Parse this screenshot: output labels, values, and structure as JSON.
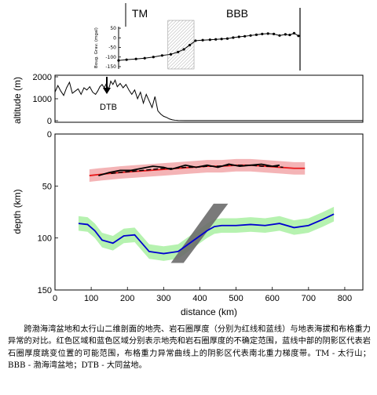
{
  "chart_data": [
    {
      "type": "line",
      "title": "",
      "ylabel": "Boug. Grav. (mgal)",
      "xlim": [
        60,
        385
      ],
      "ylim": [
        -150,
        50
      ],
      "yticks": [
        50,
        0,
        -50,
        -100,
        -150
      ],
      "region_labels": [
        "TM",
        "BBB"
      ],
      "shaded_x": [
        192,
        228
      ],
      "series": [
        {
          "x": [
            124,
            135,
            148,
            160,
            172,
            184,
            196,
            206,
            214,
            222,
            230,
            240,
            250,
            258,
            266,
            274,
            282,
            290,
            298,
            306,
            314,
            322,
            330,
            338,
            346,
            354,
            360,
            366,
            372
          ],
          "y": [
            -118,
            -114,
            -110,
            -106,
            -100,
            -92,
            -86,
            -74,
            -60,
            -38,
            -15,
            -12,
            -10,
            -8,
            -6,
            -4,
            1,
            5,
            8,
            12,
            16,
            20,
            22,
            20,
            12,
            18,
            15,
            24,
            10
          ]
        }
      ]
    },
    {
      "type": "line",
      "ylabel": "altitude (m)",
      "xlim": [
        0,
        850
      ],
      "ylim": [
        0,
        2000
      ],
      "yticks": [
        2000,
        1000,
        0
      ],
      "annotation": "DTB",
      "annotation_x": 130,
      "series": [
        {
          "x": [
            0,
            8,
            16,
            24,
            32,
            40,
            48,
            56,
            64,
            72,
            80,
            88,
            96,
            104,
            112,
            118,
            124,
            130,
            136,
            142,
            148,
            154,
            160,
            166,
            172,
            180,
            188,
            196,
            204,
            212,
            220,
            228,
            236,
            244,
            252,
            260,
            268,
            276,
            284,
            292,
            300,
            308,
            316,
            324,
            332,
            340,
            360,
            400,
            450,
            500,
            600,
            700,
            800,
            850
          ],
          "y": [
            1300,
            1600,
            1350,
            1150,
            1500,
            1750,
            1250,
            1350,
            1450,
            1200,
            1500,
            1400,
            1550,
            1300,
            1200,
            1350,
            1550,
            1650,
            1500,
            1700,
            1400,
            1800,
            1650,
            1850,
            1550,
            1700,
            1500,
            1650,
            1400,
            1200,
            1400,
            1000,
            1300,
            800,
            1200,
            900,
            600,
            1100,
            450,
            300,
            200,
            150,
            80,
            40,
            20,
            10,
            5,
            5,
            5,
            3,
            3,
            3,
            3,
            3
          ]
        }
      ]
    },
    {
      "type": "line",
      "xlabel": "distance (km)",
      "ylabel": "depth (km)",
      "xlim": [
        0,
        850
      ],
      "ylim": [
        150,
        0
      ],
      "xticks": [
        0,
        100,
        200,
        300,
        400,
        500,
        600,
        700,
        800
      ],
      "yticks": [
        0,
        50,
        100,
        150
      ],
      "series": [
        {
          "x": [
            95,
            120,
            150,
            180,
            220,
            260,
            300,
            340,
            380,
            420,
            460,
            500,
            540,
            580,
            620,
            660,
            690
          ],
          "y": [
            40,
            39,
            38,
            37,
            36,
            35,
            34,
            33,
            32,
            31,
            31,
            30,
            30,
            31,
            32,
            33,
            33
          ],
          "color": "#e8191b",
          "band": 6
        },
        {
          "x": [
            155,
            180,
            210,
            240,
            270,
            300,
            330,
            360,
            390,
            420,
            450,
            480,
            510,
            540,
            570,
            600,
            630
          ],
          "y": [
            38,
            37,
            36,
            35,
            34,
            33,
            33,
            32,
            32,
            31,
            31,
            30,
            30,
            30,
            31,
            31,
            32
          ],
          "color": "#000000",
          "dashed": true
        },
        {
          "x": [
            120,
            150,
            180,
            210,
            240,
            270,
            300,
            320,
            340,
            360,
            390,
            420,
            450,
            480,
            510,
            540,
            570,
            600,
            620
          ],
          "y": [
            40,
            37,
            35,
            35,
            33,
            31,
            32,
            34,
            32,
            30,
            32,
            30,
            32,
            29,
            31,
            30,
            29,
            31,
            30
          ],
          "color": "#000000"
        },
        {
          "x": [
            65,
            90,
            110,
            130,
            160,
            190,
            220,
            240,
            260,
            280,
            300,
            320,
            340,
            360,
            380,
            400,
            420,
            440,
            460,
            500,
            540,
            580,
            620,
            660,
            700,
            740,
            770
          ],
          "y": [
            86,
            87,
            93,
            102,
            105,
            98,
            97,
            105,
            113,
            114,
            115,
            114,
            113,
            108,
            103,
            98,
            93,
            89,
            88,
            88,
            87,
            88,
            86,
            90,
            88,
            82,
            77
          ],
          "color": "#0000d0",
          "band": 7
        }
      ],
      "shaded_polygon": [
        [
          320,
          124
        ],
        [
          355,
          124
        ],
        [
          478,
          67
        ],
        [
          438,
          67
        ]
      ]
    }
  ],
  "caption": "跨渤海湾盆地和太行山二维剖面的地壳、岩石圈厚度（分别为红线和蓝线）与地表海拔和布格重力异常的对比。红色区域和蓝色区域分别表示地壳和岩石圈厚度的不确定范围，蓝线中部的阴影区代表岩石圈厚度跳变位置的可能范围，布格重力异常曲线上的阴影区代表南北重力梯度带。TM - 太行山；BBB - 渤海湾盆地；DTB - 大同盆地。"
}
